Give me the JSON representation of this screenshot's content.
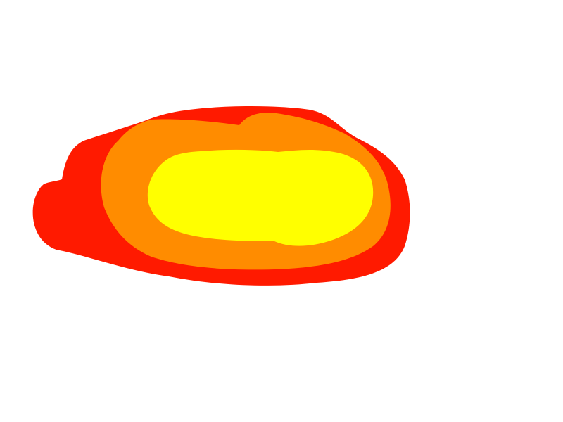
{
  "drawing": {
    "background_color": "#FFFFFF",
    "layers": [
      {
        "name": "outer-red-blob",
        "color": "#FF1A00"
      },
      {
        "name": "middle-orange-blob",
        "color": "#FF8C00"
      },
      {
        "name": "inner-yellow-blob",
        "color": "#FFFF00"
      }
    ]
  }
}
